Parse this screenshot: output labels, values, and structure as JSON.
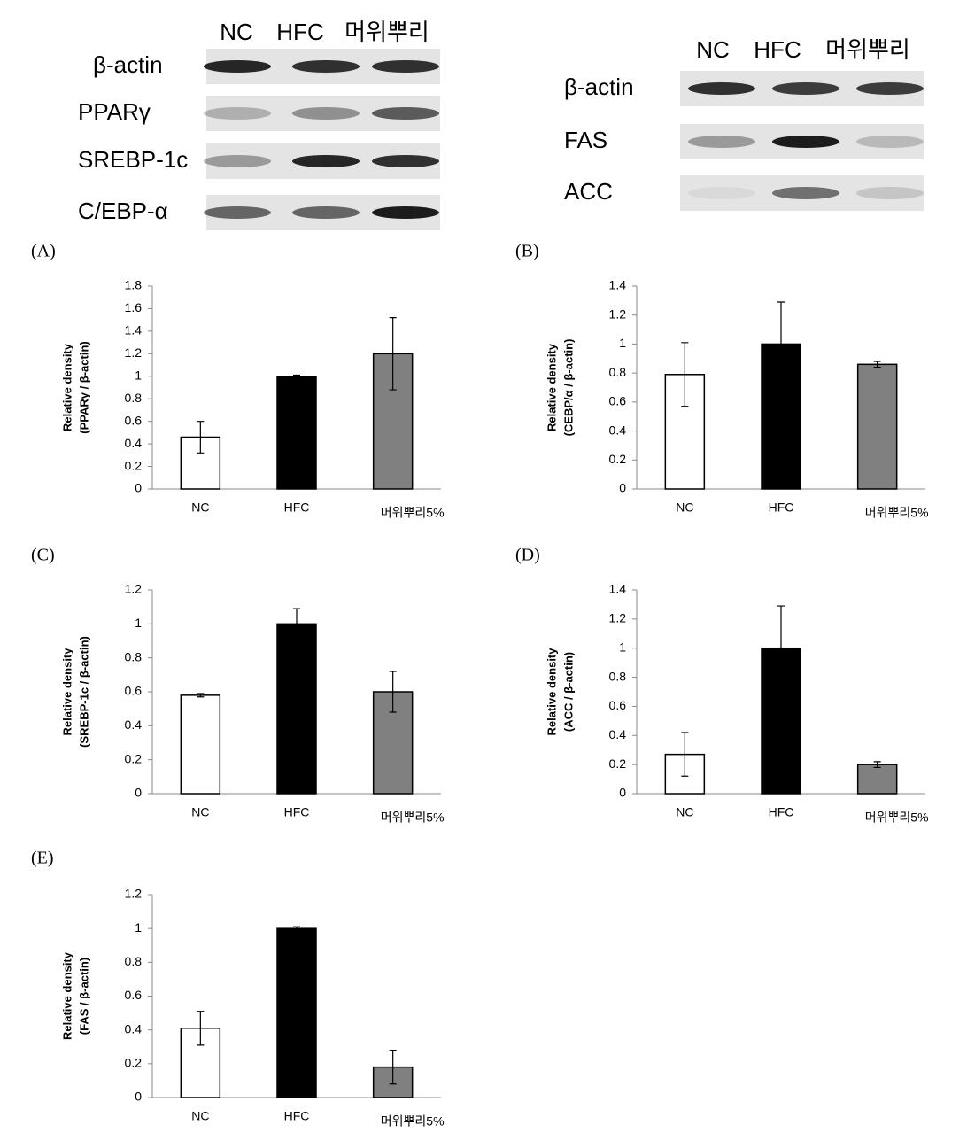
{
  "blots": [
    {
      "lanes": [
        "NC",
        "HFC",
        "머위뿌리"
      ],
      "rows": [
        "β-actin",
        "PPARγ",
        "SREBP-1c",
        "C/EBP-α"
      ]
    },
    {
      "lanes": [
        "NC",
        "HFC",
        "머위뿌리"
      ],
      "rows": [
        "β-actin",
        "FAS",
        "ACC"
      ]
    }
  ],
  "chart_data": [
    {
      "type": "bar",
      "label": "(A)",
      "ylabel": [
        "Relative density",
        "(PPARγ / β-actin)"
      ],
      "categories": [
        "NC",
        "HFC",
        "머위뿌리5%"
      ],
      "values": [
        0.46,
        1.0,
        1.2
      ],
      "errors": [
        0.14,
        0.01,
        0.32
      ],
      "colors": [
        "#ffffff",
        "#000000",
        "#808080"
      ],
      "ylim": [
        0,
        1.8
      ],
      "yticks": [
        0,
        0.2,
        0.4,
        0.6,
        0.8,
        1,
        1.2,
        1.4,
        1.6,
        1.8
      ]
    },
    {
      "type": "bar",
      "label": "(B)",
      "ylabel": [
        "Relative density",
        "(CEBP/α / β-actin)"
      ],
      "categories": [
        "NC",
        "HFC",
        "머위뿌리5%"
      ],
      "values": [
        0.79,
        1.0,
        0.86
      ],
      "errors": [
        0.22,
        0.29,
        0.02
      ],
      "colors": [
        "#ffffff",
        "#000000",
        "#808080"
      ],
      "ylim": [
        0,
        1.4
      ],
      "yticks": [
        0,
        0.2,
        0.4,
        0.6,
        0.8,
        1,
        1.2,
        1.4
      ]
    },
    {
      "type": "bar",
      "label": "(C)",
      "ylabel": [
        "Relative density",
        "(SREBP-1c / β-actin)"
      ],
      "categories": [
        "NC",
        "HFC",
        "머위뿌리5%"
      ],
      "values": [
        0.58,
        1.0,
        0.6
      ],
      "errors": [
        0.01,
        0.09,
        0.12
      ],
      "colors": [
        "#ffffff",
        "#000000",
        "#808080"
      ],
      "ylim": [
        0,
        1.2
      ],
      "yticks": [
        0,
        0.2,
        0.4,
        0.6,
        0.8,
        1,
        1.2
      ]
    },
    {
      "type": "bar",
      "label": "(D)",
      "ylabel": [
        "Relative density",
        "(ACC / β-actin)"
      ],
      "categories": [
        "NC",
        "HFC",
        "머위뿌리5%"
      ],
      "values": [
        0.27,
        1.0,
        0.2
      ],
      "errors": [
        0.15,
        0.29,
        0.02
      ],
      "colors": [
        "#ffffff",
        "#000000",
        "#808080"
      ],
      "ylim": [
        0,
        1.4
      ],
      "yticks": [
        0,
        0.2,
        0.4,
        0.6,
        0.8,
        1,
        1.2,
        1.4
      ]
    },
    {
      "type": "bar",
      "label": "(E)",
      "ylabel": [
        "Relative density",
        "(FAS / β-actin)"
      ],
      "categories": [
        "NC",
        "HFC",
        "머위뿌리5%"
      ],
      "values": [
        0.41,
        1.0,
        0.18
      ],
      "errors": [
        0.1,
        0.01,
        0.1
      ],
      "colors": [
        "#ffffff",
        "#000000",
        "#808080"
      ],
      "ylim": [
        0,
        1.2
      ],
      "yticks": [
        0,
        0.2,
        0.4,
        0.6,
        0.8,
        1,
        1.2
      ]
    }
  ]
}
